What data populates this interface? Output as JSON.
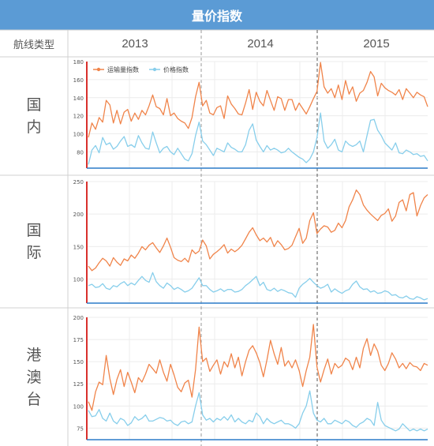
{
  "title": "量价指数",
  "header": {
    "type_label": "航线类型",
    "years": [
      "2013",
      "2014",
      "2015"
    ]
  },
  "colors": {
    "header_bg": "#5b9bd5",
    "freight_series": "#f0844a",
    "price_series": "#87ceeb",
    "y_axis_line": "#d9302c",
    "x_axis_line": "#2b7cc9"
  },
  "rows": [
    {
      "label_chars": [
        "国",
        "内"
      ]
    },
    {
      "label_chars": [
        "国",
        "际"
      ]
    },
    {
      "label_chars": [
        "港",
        "澳",
        "台"
      ]
    }
  ],
  "chart_data": [
    {
      "type": "line",
      "name": "国内",
      "legend": [
        "运输量指数",
        "价格指数"
      ],
      "legend_position": "top-left",
      "ylim": [
        62,
        180
      ],
      "yticks": [
        80,
        100,
        120,
        140,
        160,
        180
      ],
      "x_range": [
        "2013-01",
        "2015-12"
      ],
      "series": [
        {
          "name": "运输量指数",
          "color": "#f0844a",
          "values": [
            96,
            112,
            105,
            118,
            113,
            137,
            132,
            112,
            126,
            111,
            124,
            127,
            114,
            123,
            116,
            126,
            121,
            131,
            143,
            130,
            128,
            121,
            139,
            120,
            123,
            117,
            114,
            112,
            106,
            118,
            141,
            157,
            131,
            137,
            123,
            121,
            129,
            131,
            117,
            142,
            133,
            128,
            122,
            121,
            134,
            149,
            127,
            146,
            136,
            131,
            148,
            137,
            126,
            141,
            139,
            126,
            138,
            138,
            126,
            134,
            128,
            122,
            130,
            139,
            147,
            179,
            152,
            145,
            150,
            140,
            154,
            138,
            159,
            144,
            152,
            136,
            145,
            148,
            157,
            169,
            163,
            142,
            156,
            151,
            148,
            146,
            143,
            149,
            138,
            150,
            145,
            140,
            146,
            143,
            141,
            130
          ]
        },
        {
          "name": "价格指数",
          "color": "#87ceeb",
          "values": [
            66,
            82,
            87,
            79,
            96,
            88,
            90,
            83,
            86,
            92,
            97,
            86,
            88,
            85,
            98,
            90,
            84,
            83,
            102,
            90,
            79,
            84,
            86,
            80,
            77,
            84,
            78,
            72,
            70,
            78,
            98,
            113,
            92,
            88,
            82,
            76,
            84,
            82,
            80,
            90,
            85,
            83,
            80,
            80,
            88,
            104,
            111,
            93,
            86,
            80,
            87,
            82,
            84,
            82,
            79,
            80,
            84,
            80,
            77,
            74,
            72,
            68,
            72,
            80,
            96,
            123,
            92,
            84,
            88,
            94,
            82,
            80,
            92,
            88,
            86,
            88,
            92,
            80,
            98,
            115,
            116,
            104,
            98,
            90,
            86,
            82,
            90,
            79,
            78,
            82,
            80,
            77,
            78,
            75,
            76,
            70
          ]
        }
      ]
    },
    {
      "type": "line",
      "name": "国际",
      "ylim": [
        63,
        250
      ],
      "yticks": [
        100,
        150,
        200,
        250
      ],
      "x_range": [
        "2013-01",
        "2015-12"
      ],
      "series": [
        {
          "name": "运输量指数",
          "color": "#f0844a",
          "values": [
            120,
            113,
            117,
            125,
            132,
            128,
            120,
            133,
            126,
            121,
            131,
            128,
            137,
            132,
            140,
            150,
            145,
            152,
            156,
            148,
            141,
            151,
            163,
            149,
            133,
            129,
            127,
            132,
            126,
            145,
            139,
            143,
            160,
            151,
            131,
            138,
            142,
            147,
            153,
            140,
            146,
            142,
            146,
            152,
            162,
            172,
            179,
            168,
            159,
            163,
            157,
            164,
            150,
            159,
            153,
            145,
            147,
            152,
            165,
            178,
            155,
            163,
            190,
            202,
            170,
            177,
            182,
            180,
            172,
            175,
            186,
            179,
            190,
            211,
            222,
            237,
            230,
            214,
            206,
            200,
            195,
            190,
            198,
            201,
            208,
            189,
            197,
            218,
            222,
            205,
            230,
            233,
            197,
            213,
            225,
            230
          ]
        },
        {
          "name": "价格指数",
          "color": "#87ceeb",
          "values": [
            90,
            92,
            87,
            88,
            93,
            86,
            84,
            90,
            88,
            93,
            96,
            90,
            94,
            91,
            98,
            104,
            98,
            95,
            110,
            96,
            90,
            86,
            94,
            90,
            84,
            87,
            84,
            80,
            82,
            86,
            94,
            102,
            90,
            90,
            84,
            80,
            82,
            85,
            81,
            84,
            84,
            80,
            81,
            84,
            90,
            94,
            99,
            104,
            90,
            95,
            84,
            82,
            86,
            81,
            84,
            82,
            79,
            78,
            72,
            86,
            92,
            96,
            101,
            95,
            90,
            86,
            88,
            92,
            80,
            85,
            81,
            78,
            82,
            84,
            92,
            97,
            88,
            84,
            85,
            80,
            82,
            78,
            79,
            82,
            80,
            75,
            76,
            72,
            71,
            74,
            70,
            69,
            73,
            71,
            68,
            70
          ]
        }
      ]
    },
    {
      "type": "line",
      "name": "港澳台",
      "ylim": [
        62,
        200
      ],
      "yticks": [
        75,
        100,
        125,
        150,
        175,
        200
      ],
      "x_range": [
        "2013-01",
        "2015-12"
      ],
      "series": [
        {
          "name": "运输量指数",
          "color": "#f0844a",
          "values": [
            105,
            95,
            116,
            127,
            124,
            157,
            131,
            113,
            130,
            141,
            122,
            138,
            127,
            115,
            132,
            127,
            136,
            147,
            142,
            137,
            152,
            138,
            128,
            147,
            135,
            121,
            116,
            126,
            129,
            110,
            141,
            189,
            150,
            154,
            139,
            146,
            152,
            136,
            150,
            144,
            159,
            143,
            155,
            134,
            150,
            163,
            168,
            160,
            149,
            133,
            152,
            174,
            159,
            147,
            166,
            145,
            151,
            143,
            152,
            140,
            122,
            140,
            155,
            192,
            144,
            127,
            141,
            153,
            136,
            148,
            143,
            146,
            154,
            151,
            141,
            155,
            143,
            165,
            176,
            157,
            170,
            162,
            146,
            140,
            148,
            160,
            153,
            143,
            148,
            142,
            149,
            145,
            144,
            140,
            148,
            146
          ]
        },
        {
          "name": "价格指数",
          "color": "#87ceeb",
          "values": [
            95,
            88,
            89,
            96,
            86,
            83,
            92,
            83,
            80,
            86,
            84,
            78,
            81,
            88,
            84,
            86,
            90,
            83,
            83,
            85,
            87,
            86,
            83,
            84,
            80,
            78,
            82,
            83,
            80,
            82,
            100,
            115,
            90,
            84,
            86,
            82,
            86,
            84,
            88,
            84,
            90,
            82,
            86,
            82,
            80,
            84,
            82,
            92,
            88,
            80,
            86,
            82,
            80,
            82,
            84,
            80,
            80,
            78,
            75,
            80,
            92,
            100,
            117,
            92,
            84,
            82,
            86,
            80,
            80,
            84,
            82,
            80,
            84,
            82,
            78,
            76,
            80,
            82,
            86,
            84,
            78,
            104,
            84,
            78,
            76,
            74,
            72,
            74,
            80,
            76,
            72,
            74,
            72,
            74,
            72,
            74
          ]
        }
      ]
    }
  ]
}
